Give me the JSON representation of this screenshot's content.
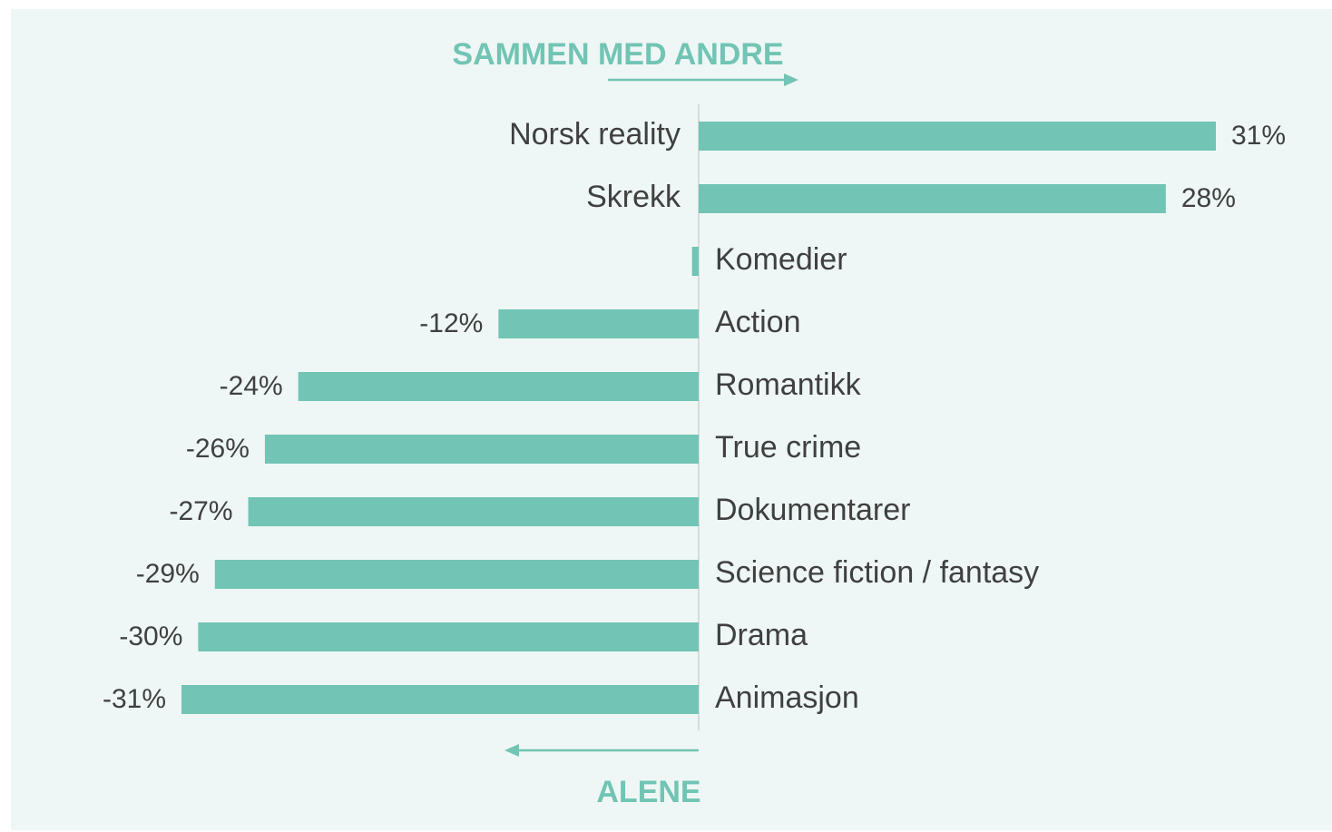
{
  "chart_data": {
    "type": "diverging-bar",
    "categories": [
      "Norsk reality",
      "Skrekk",
      "Komedier",
      "Action",
      "Romantikk",
      "True crime",
      "Dokumentarer",
      "Science fiction / fantasy",
      "Drama",
      "Animasjon"
    ],
    "values": [
      31,
      28,
      -0.4,
      -12,
      -24,
      -26,
      -27,
      -29,
      -30,
      -31
    ],
    "value_labels": [
      "31%",
      "28%",
      null,
      "-12%",
      "-24%",
      "-26%",
      "-27%",
      "-29%",
      "-30%",
      "-31%"
    ],
    "color": "#72c4b4",
    "xlim": [
      -35,
      35
    ],
    "annotations": [
      "SAMMEN MED ANDRE",
      "ALENE"
    ]
  }
}
